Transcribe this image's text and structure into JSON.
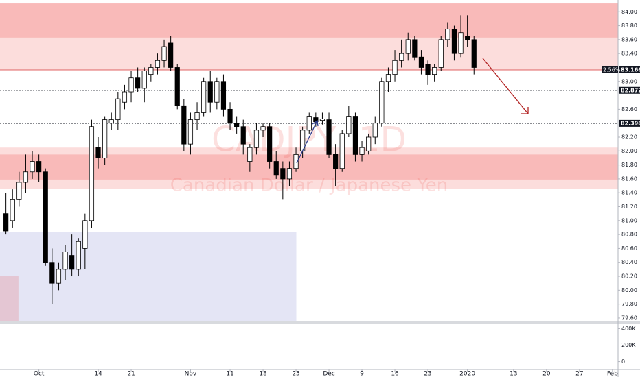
{
  "chart_data": {
    "type": "candlestick",
    "title": "CADJPY, 1D",
    "subtitle": "Canadian Dollar / Japanese Yen",
    "x": [
      0,
      1,
      2,
      3,
      4,
      5,
      6,
      7,
      8,
      9,
      10,
      11,
      12,
      13,
      14,
      15,
      16,
      17,
      18,
      19,
      20,
      21,
      22,
      23,
      24,
      25,
      26,
      27,
      28,
      29,
      30,
      31,
      32,
      33,
      34,
      35,
      36,
      37,
      38,
      39,
      40,
      41,
      42,
      43,
      44,
      45,
      46,
      47,
      48,
      49,
      50,
      51,
      52,
      53,
      54,
      55,
      56,
      57,
      58,
      59,
      60,
      61,
      62,
      63,
      64,
      65,
      66,
      67,
      68,
      69,
      70,
      71
    ],
    "open": [
      81.1,
      81.0,
      81.3,
      81.55,
      81.7,
      81.85,
      81.7,
      80.4,
      80.1,
      80.3,
      80.5,
      80.3,
      80.6,
      81.0,
      82.05,
      81.9,
      82.4,
      82.45,
      82.7,
      82.85,
      83.05,
      82.9,
      83.1,
      83.2,
      83.3,
      83.55,
      83.2,
      82.65,
      82.1,
      82.45,
      82.55,
      83.0,
      82.7,
      83.0,
      82.6,
      82.4,
      82.35,
      81.85,
      82.05,
      82.3,
      82.35,
      81.85,
      81.75,
      81.6,
      81.75,
      82.0,
      82.3,
      82.48,
      82.44,
      82.45,
      81.95,
      81.75,
      82.25,
      82.5,
      81.95,
      82.0,
      82.2,
      82.4,
      83.0,
      83.1,
      83.3,
      83.4,
      83.6,
      83.35,
      83.25,
      83.1,
      83.2,
      83.6,
      83.75,
      83.4,
      83.65,
      83.6
    ],
    "high": [
      81.4,
      81.45,
      81.7,
      81.95,
      82.0,
      81.95,
      81.75,
      80.6,
      80.4,
      80.65,
      80.8,
      80.75,
      81.1,
      82.45,
      82.2,
      82.5,
      82.55,
      82.85,
      82.95,
      83.15,
      83.2,
      83.2,
      83.25,
      83.4,
      83.6,
      83.65,
      83.25,
      82.75,
      82.55,
      82.7,
      83.05,
      83.15,
      83.05,
      83.1,
      82.7,
      82.5,
      82.45,
      82.1,
      82.4,
      82.4,
      82.4,
      82.0,
      81.85,
      81.85,
      82.05,
      82.35,
      82.55,
      82.55,
      82.55,
      82.55,
      82.1,
      82.3,
      82.65,
      82.55,
      82.15,
      82.25,
      82.5,
      83.05,
      83.2,
      83.45,
      83.6,
      83.7,
      83.65,
      83.45,
      83.3,
      83.25,
      83.65,
      83.85,
      83.8,
      83.95,
      83.95,
      83.65
    ],
    "low": [
      80.8,
      80.9,
      81.2,
      81.4,
      81.6,
      81.55,
      80.35,
      79.8,
      80.0,
      80.15,
      80.2,
      80.2,
      80.3,
      80.9,
      81.75,
      81.8,
      82.3,
      82.3,
      82.6,
      82.7,
      82.85,
      82.7,
      83.0,
      83.1,
      83.2,
      83.15,
      82.6,
      82.0,
      81.95,
      82.3,
      82.5,
      82.55,
      82.6,
      82.5,
      82.3,
      82.25,
      81.95,
      81.7,
      81.95,
      82.2,
      81.75,
      81.6,
      81.3,
      81.5,
      81.7,
      81.9,
      82.25,
      82.35,
      82.38,
      81.9,
      81.5,
      81.7,
      82.2,
      81.85,
      81.85,
      81.95,
      82.1,
      82.35,
      82.85,
      83.0,
      83.2,
      83.3,
      83.3,
      83.1,
      82.95,
      83.0,
      83.15,
      83.5,
      83.3,
      83.35,
      83.5,
      83.1
    ],
    "close": [
      80.85,
      81.3,
      81.55,
      81.7,
      81.85,
      81.7,
      80.4,
      80.1,
      80.3,
      80.55,
      80.3,
      80.7,
      81.0,
      82.35,
      81.9,
      82.45,
      82.45,
      82.75,
      82.85,
      83.05,
      82.9,
      83.15,
      83.2,
      83.3,
      83.5,
      83.2,
      82.65,
      82.1,
      82.45,
      82.55,
      83.0,
      82.7,
      83.0,
      82.6,
      82.4,
      82.35,
      82.1,
      82.05,
      82.3,
      82.35,
      81.85,
      81.65,
      81.6,
      81.75,
      81.95,
      82.3,
      82.5,
      82.42,
      82.46,
      81.95,
      81.75,
      82.25,
      82.5,
      81.95,
      82.05,
      82.2,
      82.4,
      83.0,
      83.1,
      83.3,
      83.4,
      83.6,
      83.35,
      83.2,
      83.1,
      83.2,
      83.6,
      83.75,
      83.4,
      83.7,
      83.6,
      83.2
    ],
    "up_color": "#ffffff",
    "down_color": "#000000",
    "wick_color": "#000000",
    "xlim": [
      -0.9,
      92.85
    ],
    "xticks": [
      {
        "value": 5,
        "label": "Oct"
      },
      14,
      {
        "value": 19,
        "label": "21"
      },
      {
        "value": 28,
        "label": "Nov"
      },
      {
        "value": 34,
        "label": "11"
      },
      {
        "value": 39,
        "label": "18"
      },
      {
        "value": 44,
        "label": "25"
      },
      {
        "value": 49,
        "label": "Dec"
      },
      {
        "value": 54,
        "label": "9"
      },
      {
        "value": 59,
        "label": "16"
      },
      {
        "value": 64,
        "label": "23"
      },
      {
        "value": 70,
        "label": "2020"
      },
      {
        "value": 77,
        "label": "13"
      },
      {
        "value": 82,
        "label": "20"
      },
      {
        "value": 87,
        "label": "27"
      },
      {
        "value": 92,
        "label": "Feb"
      }
    ],
    "ylim": [
      79.56,
      84.17
    ],
    "yticks": [
      {
        "value": 79.6,
        "label": "79.60"
      },
      {
        "value": 79.8,
        "label": "79.80"
      },
      {
        "value": 80.0,
        "label": "80.00"
      },
      {
        "value": 80.2,
        "label": "80.20"
      },
      {
        "value": 80.4,
        "label": "80.40"
      },
      {
        "value": 80.6,
        "label": "80.60"
      },
      {
        "value": 80.8,
        "label": "80.80"
      },
      {
        "value": 81.0,
        "label": "81.00"
      },
      {
        "value": 81.2,
        "label": "81.20"
      },
      {
        "value": 81.4,
        "label": "81.40"
      },
      {
        "value": 81.6,
        "label": "81.60"
      },
      {
        "value": 81.8,
        "label": "81.80"
      },
      {
        "value": 82.0,
        "label": "82.00"
      },
      {
        "value": 82.2,
        "label": "82.20"
      },
      {
        "value": 82.6,
        "label": "82.60"
      },
      {
        "value": 83.0,
        "label": "83.00"
      },
      {
        "value": 83.4,
        "label": "83.40"
      },
      {
        "value": 83.6,
        "label": "83.60"
      },
      {
        "value": 83.8,
        "label": "83.80"
      },
      {
        "value": 84.0,
        "label": "84.00"
      }
    ],
    "zones": [
      {
        "ylim": [
          83.18,
          84.12
        ],
        "color": "rgba(239,83,80,0.2)"
      },
      {
        "ylim": [
          83.63,
          84.12
        ],
        "color": "rgba(239,83,80,0.25)"
      },
      {
        "ylim": [
          81.46,
          82.05
        ],
        "color": "rgba(239,83,80,0.2)"
      },
      {
        "ylim": [
          81.59,
          81.95
        ],
        "color": "rgba(239,83,80,0.25)"
      },
      {
        "ylim": [
          79.56,
          80.84
        ],
        "xlim": [
          -0.9,
          44.05
        ],
        "color": "rgba(149,152,216,0.25)"
      },
      {
        "ylim": [
          79.56,
          80.2
        ],
        "xlim": [
          -0.9,
          1.9
        ],
        "color": "rgba(230,140,150,0.35)"
      }
    ],
    "levels": [
      83.166,
      82.872,
      82.398
    ],
    "level_colors": [
      "#e06666",
      "#131722",
      "#131722"
    ],
    "level_change_label": "2.56%",
    "volume_ylim": [
      -95000,
      470000
    ],
    "volume_yticks": [
      {
        "value": 400000,
        "label": "400K"
      },
      {
        "value": 200000,
        "label": "200K"
      },
      0
    ]
  }
}
